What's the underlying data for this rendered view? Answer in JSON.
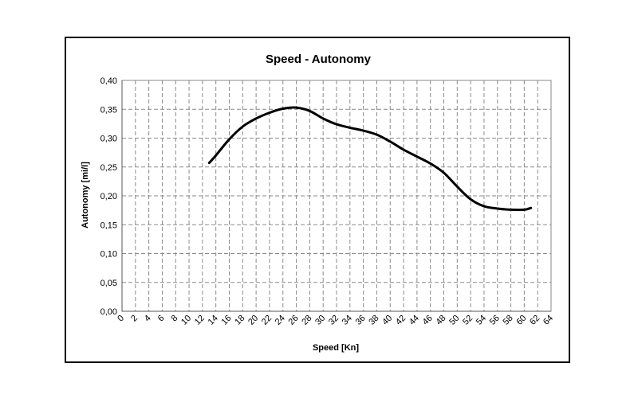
{
  "chart_data": {
    "type": "line",
    "title": "Speed - Autonomy",
    "xlabel": "Speed [Kn]",
    "ylabel": "Autonomy [mi/l]",
    "xlim": [
      0,
      64
    ],
    "ylim": [
      0,
      0.4
    ],
    "xticks": [
      "0",
      "2",
      "4",
      "6",
      "8",
      "10",
      "12",
      "14",
      "16",
      "18",
      "20",
      "22",
      "24",
      "26",
      "28",
      "30",
      "32",
      "34",
      "36",
      "38",
      "40",
      "42",
      "44",
      "46",
      "48",
      "50",
      "52",
      "54",
      "56",
      "58",
      "60",
      "62",
      "64"
    ],
    "yticks": [
      "0,00",
      "0,05",
      "0,10",
      "0,15",
      "0,20",
      "0,25",
      "0,30",
      "0,35",
      "0,40"
    ],
    "grid": true,
    "legend": "none",
    "line_color": "#000000",
    "series": [
      {
        "x": [
          13,
          14,
          16,
          18,
          20,
          22,
          24,
          26,
          28,
          30,
          32,
          34,
          36,
          38,
          40,
          42,
          44,
          46,
          48,
          50,
          52,
          54,
          56,
          58,
          60,
          61
        ],
        "y": [
          0.257,
          0.27,
          0.298,
          0.32,
          0.334,
          0.344,
          0.351,
          0.353,
          0.347,
          0.334,
          0.324,
          0.318,
          0.313,
          0.306,
          0.294,
          0.28,
          0.268,
          0.256,
          0.24,
          0.216,
          0.194,
          0.182,
          0.178,
          0.176,
          0.176,
          0.179
        ]
      }
    ]
  }
}
